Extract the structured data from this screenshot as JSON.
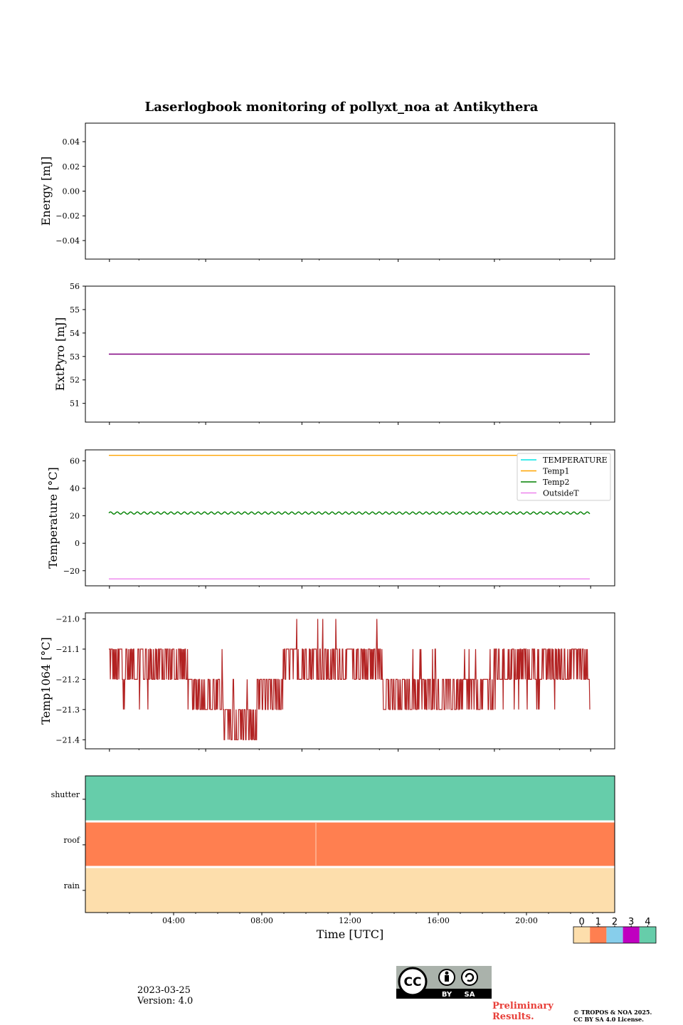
{
  "header": {
    "title": "Laserlogbook monitoring of pollyxt_noa at Antikythera"
  },
  "footer": {
    "date": "2023-03-25",
    "version": "Version: 4.0",
    "preliminary": "Preliminary Results.",
    "copyright_line1": "© TROPOS & NOA 2025.",
    "copyright_line2": "CC BY SA 4.0 License.",
    "license_badge": [
      "CC",
      "BY",
      "SA"
    ]
  },
  "chart_data": [
    {
      "type": "line",
      "ylabel": "Energy [mJ]",
      "ylim": [
        -0.055,
        0.055
      ],
      "yticks": [
        0.04,
        0.02,
        0.0,
        -0.02,
        -0.04
      ],
      "ytick_labels": [
        "0.04",
        "0.02",
        "0.00",
        "−0.02",
        "−0.04"
      ],
      "series": [],
      "xlim_hours": [
        0,
        24
      ],
      "x_bottom_ticks_hours": [
        1.2,
        6.0,
        10.8,
        15.6,
        20.4,
        25.2
      ]
    },
    {
      "type": "line",
      "ylabel": "ExtPyro [mJ]",
      "ylim": [
        50.2,
        56.0
      ],
      "yticks": [
        51,
        52,
        53,
        54,
        55,
        56
      ],
      "ytick_labels": [
        "51",
        "52",
        "53",
        "54",
        "55",
        "56"
      ],
      "series": [
        {
          "color": "#800080",
          "x": [
            1.2,
            25.2
          ],
          "values": [
            53.1,
            53.1
          ]
        }
      ]
    },
    {
      "type": "line",
      "ylabel": "Temperature [°C]",
      "ylim": [
        -31,
        68
      ],
      "yticks": [
        60,
        40,
        20,
        0,
        -20
      ],
      "ytick_labels": [
        "60",
        "40",
        "20",
        "0",
        "−20"
      ],
      "series": [
        {
          "name": "TEMPERATURE",
          "color": "#00e5e5",
          "values": []
        },
        {
          "name": "Temp1",
          "color": "#ffa500",
          "x": [
            1.2,
            25.2
          ],
          "values": [
            64,
            64
          ]
        },
        {
          "name": "Temp2",
          "color": "#008000",
          "mean": 22,
          "amplitude": 0.8,
          "x": [
            1.2,
            25.2
          ]
        },
        {
          "name": "OutsideT",
          "color": "#ee82ee",
          "x": [
            1.2,
            25.2
          ],
          "values": [
            -26,
            -26
          ]
        }
      ],
      "legend": "top-right"
    },
    {
      "type": "line",
      "ylabel": "Temp1064 [°C]",
      "ylim": [
        -21.43,
        -20.98
      ],
      "yticks": [
        -21.0,
        -21.1,
        -21.2,
        -21.3,
        -21.4
      ],
      "ytick_labels": [
        "−21.0",
        "−21.1",
        "−21.2",
        "−21.3",
        "−21.4"
      ],
      "series": [
        {
          "color": "#b22222",
          "segments": [
            {
              "x0": 1.2,
              "x1": 5.1,
              "low": -21.2,
              "high": -21.1,
              "spikes": [
                -21.3
              ]
            },
            {
              "x0": 5.1,
              "x1": 6.9,
              "low": -21.3,
              "high": -21.2,
              "spikes": [
                -21.1
              ]
            },
            {
              "x0": 6.9,
              "x1": 8.6,
              "low": -21.4,
              "high": -21.3,
              "spikes": [
                -21.2
              ]
            },
            {
              "x0": 8.6,
              "x1": 9.9,
              "low": -21.3,
              "high": -21.2,
              "spikes": []
            },
            {
              "x0": 9.9,
              "x1": 14.9,
              "low": -21.2,
              "high": -21.1,
              "spikes": [
                -21.0
              ]
            },
            {
              "x0": 14.9,
              "x1": 20.4,
              "low": -21.3,
              "high": -21.2,
              "spikes": [
                -21.1
              ]
            },
            {
              "x0": 20.4,
              "x1": 25.2,
              "low": -21.2,
              "high": -21.1,
              "spikes": [
                -21.3
              ]
            }
          ]
        }
      ]
    },
    {
      "type": "heatmap",
      "xlabel": "Time [UTC]",
      "xlim_hours": [
        0,
        24
      ],
      "xticks_hours": [
        4,
        8,
        12,
        16,
        20
      ],
      "xtick_labels": [
        "04:00",
        "08:00",
        "12:00",
        "16:00",
        "20:00"
      ],
      "rows": [
        {
          "label": "shutter",
          "state": 4
        },
        {
          "label": "roof",
          "state": 1
        },
        {
          "label": "rain",
          "state": 0
        }
      ],
      "colorbar": {
        "labels": [
          "0",
          "1",
          "2",
          "3",
          "4"
        ],
        "colors": [
          "#fddeac",
          "#ff7f50",
          "#87ceeb",
          "#c000c0",
          "#66cdaa"
        ]
      }
    }
  ]
}
